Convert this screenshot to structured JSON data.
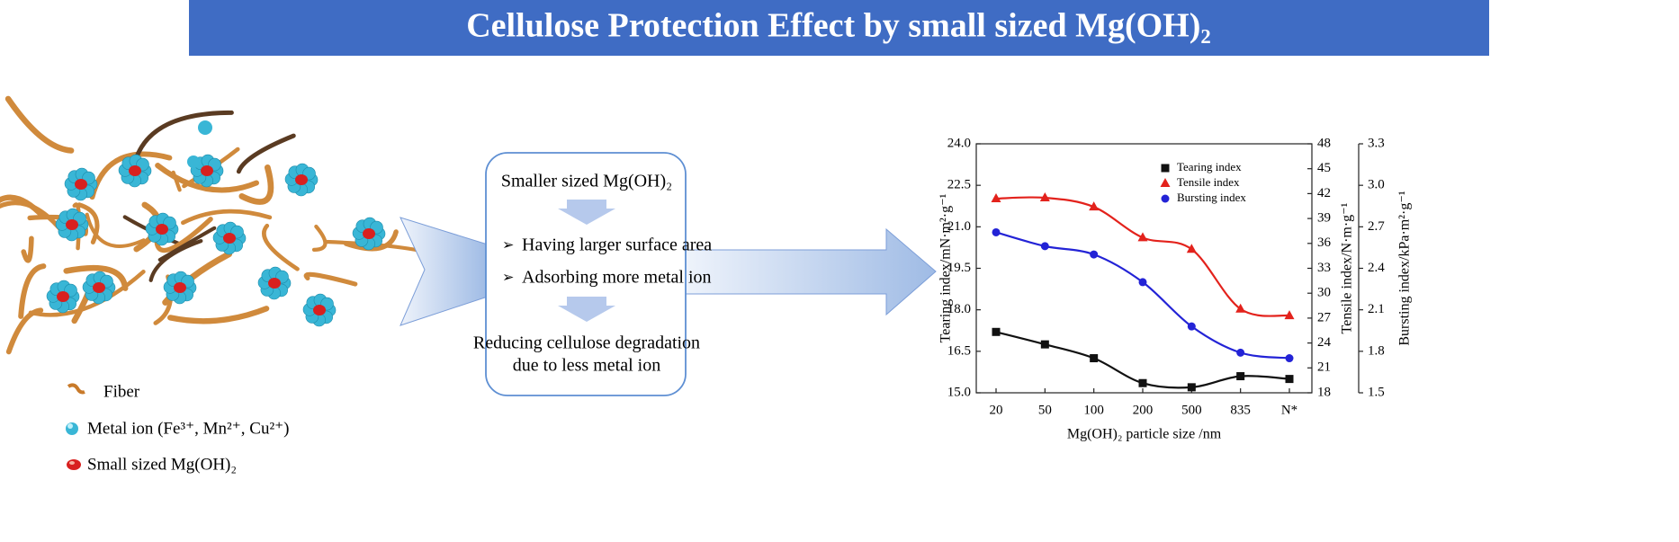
{
  "header": {
    "title": "Cellulose Protection Effect by small sized Mg(OH)₂"
  },
  "legend": {
    "items": [
      "Fiber",
      "Metal ion (Fe³⁺,  Mn²⁺,  Cu²⁺)",
      "Small sized Mg(OH)₂"
    ]
  },
  "process": {
    "start": "Smaller sized Mg(OH)₂",
    "effects": [
      "Having larger surface area",
      "Adsorbing more metal ion"
    ],
    "result": [
      "Reducing cellulose degradation",
      "due to less metal ion"
    ]
  },
  "chart_data": {
    "type": "line",
    "x_label": "Mg(OH)₂ particle size /nm",
    "y_label": "Tearing index/mN·m²·g⁻¹",
    "y2_label": "Tensile index/N·m·g⁻¹",
    "y3_label": "Bursting index/kPa·m²·g⁻¹",
    "categories": [
      "20",
      "50",
      "100",
      "200",
      "500",
      "835",
      "N*"
    ],
    "ylim": [
      15,
      24
    ],
    "yticks": [
      {
        "value": 15,
        "label": "15.0"
      },
      16.5,
      {
        "value": 18,
        "label": "18.0"
      },
      19.5,
      {
        "value": 21,
        "label": "21.0"
      },
      22.5,
      {
        "value": 24,
        "label": "24.0"
      }
    ],
    "y2lim": [
      18,
      48
    ],
    "y2ticks": [
      18,
      21,
      24,
      27,
      30,
      33,
      36,
      39,
      42,
      45,
      48
    ],
    "y3lim": [
      1.5,
      3.3
    ],
    "y3ticks": [
      1.5,
      1.8,
      2.1,
      2.4,
      2.7,
      {
        "value": 3,
        "label": "3.0"
      },
      3.3
    ],
    "legend_position": "upper right",
    "series": [
      {
        "name": "Tearing index",
        "color": "#111111",
        "marker": "square",
        "axis": "y",
        "values": [
          17.2,
          16.75,
          16.25,
          15.35,
          15.2,
          15.6,
          15.5
        ]
      },
      {
        "name": "Tensile index",
        "color": "#e3221c",
        "marker": "triangle",
        "axis": "y2",
        "values": [
          41.4,
          41.5,
          40.4,
          36.7,
          35.3,
          28.1,
          27.3
        ]
      },
      {
        "name": "Bursting index",
        "color": "#2323d6",
        "marker": "circle",
        "axis": "y3",
        "values": [
          2.66,
          2.56,
          2.5,
          2.3,
          1.98,
          1.79,
          1.75
        ]
      }
    ]
  }
}
